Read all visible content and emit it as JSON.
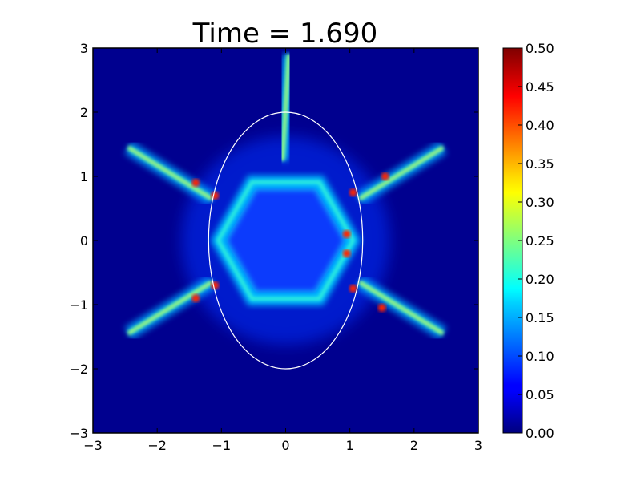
{
  "chart_data": {
    "type": "heatmap",
    "title": "Time = 1.690",
    "xlabel": "",
    "ylabel": "",
    "xlim": [
      -3,
      3
    ],
    "ylim": [
      -3,
      3
    ],
    "x_ticks": [
      "−3",
      "−2",
      "−1",
      "0",
      "1",
      "2",
      "3"
    ],
    "y_ticks": [
      "−3",
      "−2",
      "−1",
      "0",
      "1",
      "2",
      "3"
    ],
    "colorbar": {
      "range": [
        0.0,
        0.5
      ],
      "ticks": [
        "0.00",
        "0.05",
        "0.10",
        "0.15",
        "0.20",
        "0.25",
        "0.30",
        "0.35",
        "0.40",
        "0.45",
        "0.50"
      ],
      "colormap": "jet"
    },
    "overlay_ellipse": {
      "center": [
        0,
        0
      ],
      "semi_axis_x": 1.2,
      "semi_axis_y": 2.0,
      "color": "#ffffff"
    },
    "grid": false,
    "legend": "none"
  }
}
